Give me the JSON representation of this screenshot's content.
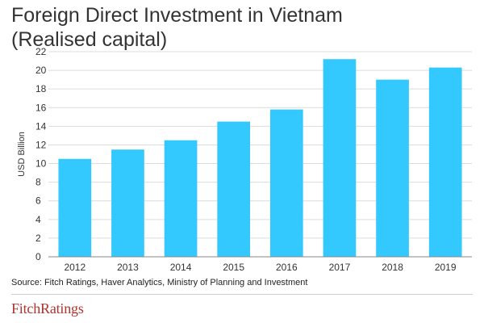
{
  "chart_data": {
    "type": "bar",
    "title_line1": "Foreign Direct Investment in Vietnam",
    "title_line2": "(Realised capital)",
    "ylabel": "USD Billion",
    "xlabel": "",
    "categories": [
      "2012",
      "2013",
      "2014",
      "2015",
      "2016",
      "2017",
      "2018",
      "2019"
    ],
    "values": [
      10.5,
      11.5,
      12.5,
      14.5,
      15.8,
      21.2,
      19.0,
      20.3
    ],
    "ylim": [
      0,
      22
    ],
    "yticks": [
      0,
      2,
      4,
      6,
      8,
      10,
      12,
      14,
      16,
      18,
      20,
      22
    ],
    "grid": true,
    "bar_color": "#33c9ff"
  },
  "source": "Source: Fitch Ratings, Haver Analytics, Ministry of Planning and Investment",
  "logo": {
    "text1": "Fitch",
    "text2": "Ratings",
    "color": "#b0332e"
  }
}
